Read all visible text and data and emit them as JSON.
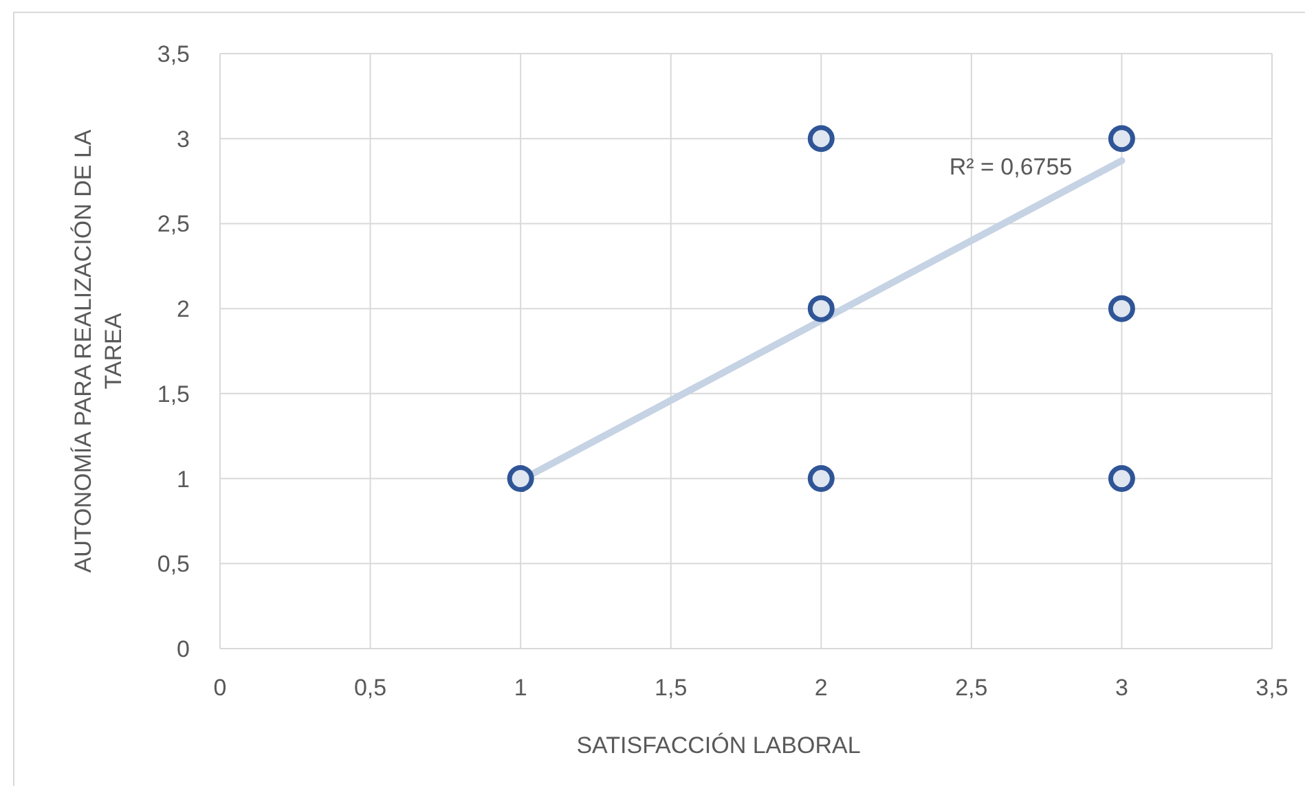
{
  "chart_data": {
    "type": "scatter",
    "xlabel": "SATISFACCIÓN LABORAL",
    "ylabel": "AUTONOMÍA PARA REALIZACIÓN DE LA TAREA",
    "xlim": [
      0,
      3.5
    ],
    "ylim": [
      0,
      3.5
    ],
    "xticks": [
      0,
      {
        "value": 0.5,
        "label": "0,5"
      },
      1,
      {
        "value": 1.5,
        "label": "1,5"
      },
      2,
      {
        "value": 2.5,
        "label": "2,5"
      },
      3,
      {
        "value": 3.5,
        "label": "3,5"
      }
    ],
    "yticks": [
      0,
      {
        "value": 0.5,
        "label": "0,5"
      },
      1,
      {
        "value": 1.5,
        "label": "1,5"
      },
      2,
      {
        "value": 2.5,
        "label": "2,5"
      },
      3,
      {
        "value": 3.5,
        "label": "3,5"
      }
    ],
    "grid": true,
    "series": [
      {
        "marker": "circle",
        "color": "#2f5597",
        "x": [
          1,
          2,
          2,
          2,
          3,
          3,
          3
        ],
        "values": [
          1,
          3,
          2,
          1,
          3,
          2,
          1
        ]
      },
      {
        "type": "line",
        "color": "#c5d3e4",
        "x": [
          1,
          3
        ],
        "values": [
          0.99,
          2.87
        ]
      }
    ],
    "annotations": [
      "R² = 0,6755"
    ]
  }
}
